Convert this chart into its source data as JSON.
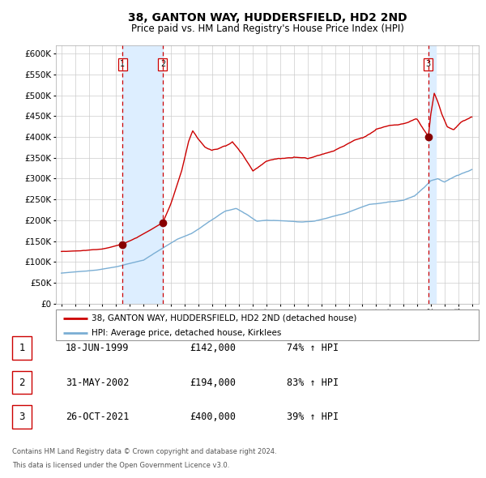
{
  "title": "38, GANTON WAY, HUDDERSFIELD, HD2 2ND",
  "subtitle": "Price paid vs. HM Land Registry's House Price Index (HPI)",
  "legend_line1": "38, GANTON WAY, HUDDERSFIELD, HD2 2ND (detached house)",
  "legend_line2": "HPI: Average price, detached house, Kirklees",
  "transactions": [
    {
      "num": 1,
      "date": "18-JUN-1999",
      "price": 142000,
      "pct": "74%",
      "dir": "↑",
      "label": "HPI",
      "x_year": 1999.46
    },
    {
      "num": 2,
      "date": "31-MAY-2002",
      "price": 194000,
      "pct": "83%",
      "dir": "↑",
      "label": "HPI",
      "x_year": 2002.41
    },
    {
      "num": 3,
      "date": "26-OCT-2021",
      "price": 400000,
      "pct": "39%",
      "dir": "↑",
      "label": "HPI",
      "x_year": 2021.82
    }
  ],
  "footnote1": "Contains HM Land Registry data © Crown copyright and database right 2024.",
  "footnote2": "This data is licensed under the Open Government Licence v3.0.",
  "red_line_color": "#cc0000",
  "blue_line_color": "#7aaed4",
  "dot_color": "#880000",
  "shading_color": "#ddeeff",
  "vline_color": "#cc0000",
  "grid_color": "#cccccc",
  "background_color": "#ffffff",
  "ylim": [
    0,
    620000
  ],
  "xlim_start": 1994.6,
  "xlim_end": 2025.5,
  "hpi_controls": [
    [
      1995.0,
      73000
    ],
    [
      1996.0,
      76000
    ],
    [
      1997.5,
      80000
    ],
    [
      1999.0,
      88000
    ],
    [
      2001.0,
      104000
    ],
    [
      2002.5,
      135000
    ],
    [
      2003.5,
      155000
    ],
    [
      2004.5,
      168000
    ],
    [
      2007.0,
      222000
    ],
    [
      2007.8,
      228000
    ],
    [
      2008.5,
      215000
    ],
    [
      2009.3,
      198000
    ],
    [
      2010.0,
      200000
    ],
    [
      2011.5,
      198000
    ],
    [
      2012.5,
      196000
    ],
    [
      2013.5,
      198000
    ],
    [
      2014.5,
      206000
    ],
    [
      2016.0,
      220000
    ],
    [
      2017.5,
      238000
    ],
    [
      2019.0,
      244000
    ],
    [
      2020.0,
      248000
    ],
    [
      2020.8,
      258000
    ],
    [
      2021.5,
      278000
    ],
    [
      2022.0,
      295000
    ],
    [
      2022.5,
      300000
    ],
    [
      2023.0,
      292000
    ],
    [
      2024.0,
      308000
    ],
    [
      2025.0,
      322000
    ]
  ],
  "red_controls": [
    [
      1995.0,
      125000
    ],
    [
      1996.5,
      127000
    ],
    [
      1998.0,
      131000
    ],
    [
      1999.46,
      142000
    ],
    [
      2000.5,
      158000
    ],
    [
      2002.41,
      194000
    ],
    [
      2003.0,
      240000
    ],
    [
      2003.8,
      320000
    ],
    [
      2004.3,
      390000
    ],
    [
      2004.6,
      415000
    ],
    [
      2005.0,
      395000
    ],
    [
      2005.5,
      375000
    ],
    [
      2006.0,
      368000
    ],
    [
      2006.5,
      372000
    ],
    [
      2007.0,
      378000
    ],
    [
      2007.5,
      388000
    ],
    [
      2008.3,
      355000
    ],
    [
      2009.0,
      318000
    ],
    [
      2009.5,
      330000
    ],
    [
      2010.0,
      342000
    ],
    [
      2011.0,
      348000
    ],
    [
      2012.0,
      352000
    ],
    [
      2013.0,
      348000
    ],
    [
      2014.0,
      358000
    ],
    [
      2015.0,
      368000
    ],
    [
      2016.0,
      385000
    ],
    [
      2017.0,
      398000
    ],
    [
      2018.0,
      418000
    ],
    [
      2019.0,
      428000
    ],
    [
      2020.0,
      432000
    ],
    [
      2021.0,
      442000
    ],
    [
      2021.82,
      400000
    ],
    [
      2022.0,
      455000
    ],
    [
      2022.25,
      505000
    ],
    [
      2022.5,
      485000
    ],
    [
      2022.8,
      455000
    ],
    [
      2023.2,
      425000
    ],
    [
      2023.7,
      418000
    ],
    [
      2024.2,
      435000
    ],
    [
      2025.0,
      448000
    ]
  ]
}
